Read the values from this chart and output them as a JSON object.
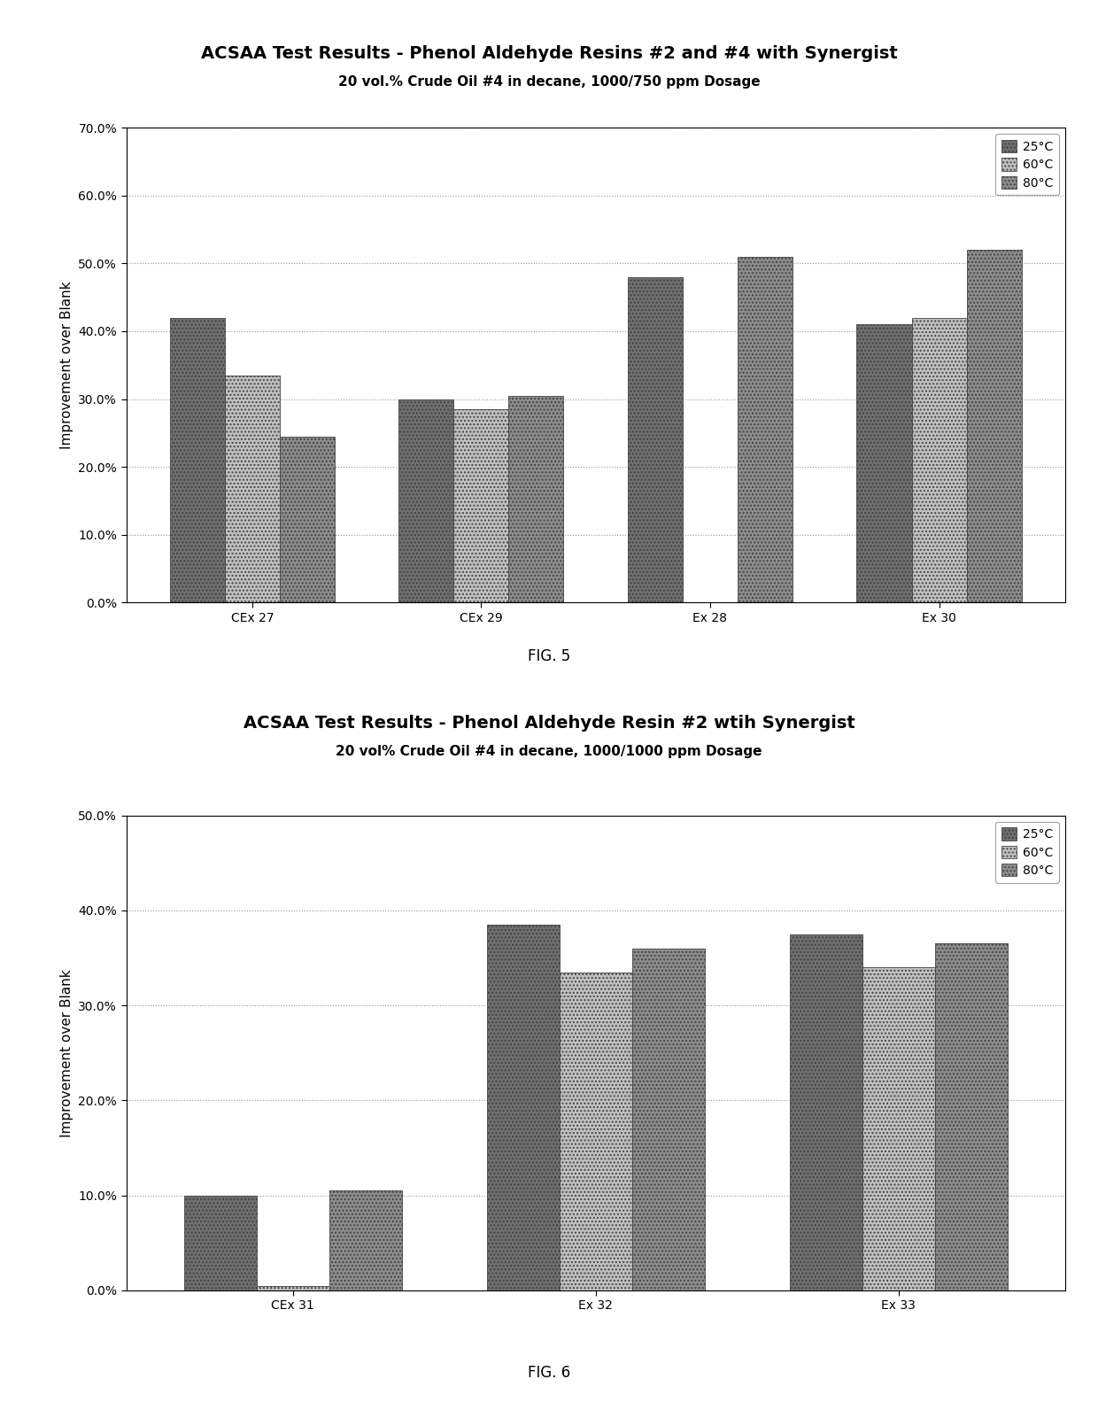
{
  "chart1": {
    "title": "ACSAA Test Results - Phenol Aldehyde Resins #2 and #4 with Synergist",
    "subtitle": "20 vol.% Crude Oil #4 in decane, 1000/750 ppm Dosage",
    "categories": [
      "CEx 27",
      "CEx 29",
      "Ex 28",
      "Ex 30"
    ],
    "series": {
      "25°C": [
        0.42,
        0.3,
        0.48,
        0.41
      ],
      "60°C": [
        0.335,
        0.285,
        0.0,
        0.42
      ],
      "80°C": [
        0.245,
        0.305,
        0.51,
        0.52
      ]
    },
    "ylim": [
      0.0,
      0.7
    ],
    "yticks": [
      0.0,
      0.1,
      0.2,
      0.3,
      0.4,
      0.5,
      0.6,
      0.7
    ],
    "ylabel": "Improvement over Blank",
    "fig_label": "FIG. 5"
  },
  "chart2": {
    "title": "ACSAA Test Results - Phenol Aldehyde Resin #2 wtih Synergist",
    "subtitle": "20 vol% Crude Oil #4 in decane, 1000/1000 ppm Dosage",
    "categories": [
      "CEx 31",
      "Ex 32",
      "Ex 33"
    ],
    "series": {
      "25°C": [
        0.1,
        0.385,
        0.375
      ],
      "60°C": [
        0.005,
        0.335,
        0.34
      ],
      "80°C": [
        0.105,
        0.36,
        0.365
      ]
    },
    "ylim": [
      0.0,
      0.5
    ],
    "yticks": [
      0.0,
      0.1,
      0.2,
      0.3,
      0.4,
      0.5
    ],
    "ylabel": "Improvement over Blank",
    "fig_label": "FIG. 6"
  },
  "bar_colors": [
    "#707070",
    "#b8b8b8",
    "#909090"
  ],
  "bar_hatches": [
    "....",
    "....",
    "...."
  ],
  "background_color": "#ffffff",
  "title_fontsize": 14,
  "subtitle_fontsize": 11,
  "tick_fontsize": 10,
  "label_fontsize": 11,
  "legend_fontsize": 10,
  "fig_label_fontsize": 12,
  "bar_width": 0.24,
  "legend_labels": [
    "25°C",
    "60°C",
    "80°C"
  ]
}
